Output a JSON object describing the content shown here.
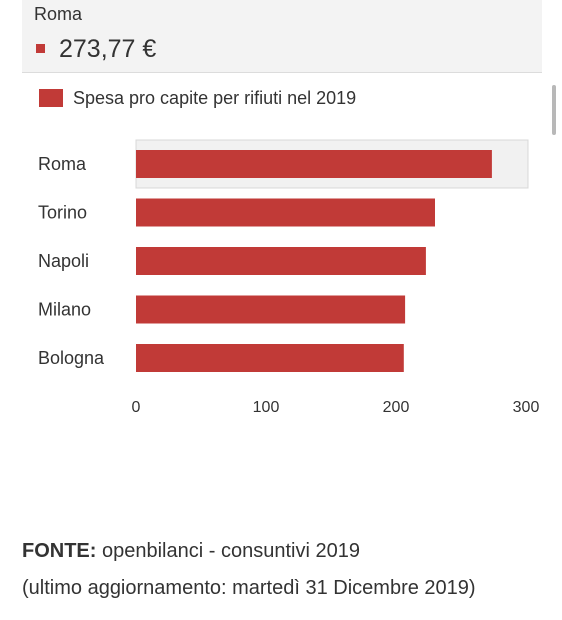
{
  "tooltip": {
    "category": "Roma",
    "value": "273,77 €"
  },
  "source": {
    "label": "FONTE:",
    "text": "openbilanci - consuntivi 2019",
    "updated": "(ultimo aggiornamento: martedì 31 Dicembre 2019)"
  },
  "colors": {
    "bar": "#c13a37",
    "highlight": "#f1f1f1"
  },
  "chart_data": {
    "type": "bar",
    "orientation": "horizontal",
    "categories": [
      "Roma",
      "Torino",
      "Napoli",
      "Milano",
      "Bologna"
    ],
    "series": [
      {
        "name": "Spesa pro capite per rifiuti nel 2019",
        "values": [
          273.77,
          230,
          223,
          207,
          206
        ]
      }
    ],
    "xticks": [
      0,
      100,
      200,
      300
    ],
    "xlim": [
      0,
      300
    ],
    "highlighted": "Roma",
    "grid": false,
    "legend": "top-left"
  }
}
